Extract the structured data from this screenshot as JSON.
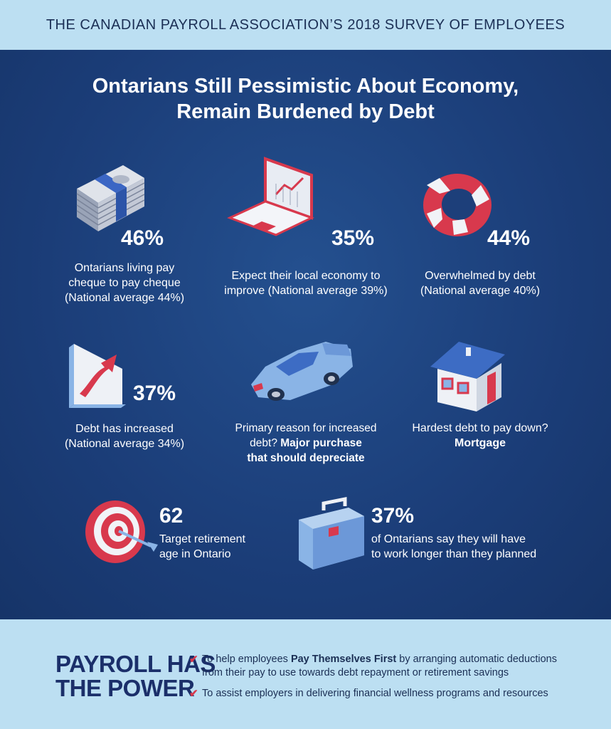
{
  "header": {
    "survey_title": "THE CANADIAN PAYROLL ASSOCIATION’S 2018 SURVEY OF EMPLOYEES"
  },
  "headline": {
    "line1": "Ontarians Still Pessimistic About Economy,",
    "line2": "Remain Burdened by Debt"
  },
  "stats": {
    "paycheque": {
      "value": "46%",
      "line1": "Ontarians living pay",
      "line2": "cheque to pay cheque",
      "line3": "(National average 44%)",
      "icon": "money-stack-icon"
    },
    "economy": {
      "value": "35%",
      "line1": "Expect their local economy to",
      "line2": "improve (National average 39%)",
      "icon": "laptop-chart-icon"
    },
    "overwhelmed": {
      "value": "44%",
      "line1": "Overwhelmed by debt",
      "line2": "(National average 40%)",
      "icon": "life-ring-icon"
    },
    "debt_increased": {
      "value": "37%",
      "line1": "Debt has increased",
      "line2": "(National average 34%)",
      "icon": "rising-chart-icon"
    },
    "reason": {
      "line1": "Primary reason for increased",
      "line2_plain": "debt? ",
      "line2_bold": "Major purchase",
      "line3_bold": "that should depreciate",
      "icon": "car-icon"
    },
    "hardest": {
      "line1": "Hardest debt to pay down?",
      "line2_bold": "Mortgage",
      "icon": "house-icon"
    },
    "retirement": {
      "value": "62",
      "line1": "Target retirement",
      "line2": "age in Ontario",
      "icon": "target-icon"
    },
    "work_longer": {
      "value": "37%",
      "line1": "of Ontarians say they will have",
      "line2": "to work longer than they planned",
      "icon": "briefcase-icon"
    }
  },
  "footer": {
    "power_line1": "PAYROLL HAS",
    "power_line2": "THE POWER",
    "bullet1_pre": "To help employees ",
    "bullet1_bold": "Pay Themselves First",
    "bullet1_post": " by arranging automatic deductions",
    "bullet1_line2": "from their pay to use towards debt repayment or retirement savings",
    "bullet2": "To assist employers in delivering financial wellness programs and resources",
    "check_icon": "checkmark-icon"
  },
  "colors": {
    "accent_red": "#d8394d",
    "navy": "#1d3f7a",
    "light_blue": "#bcdff2"
  }
}
